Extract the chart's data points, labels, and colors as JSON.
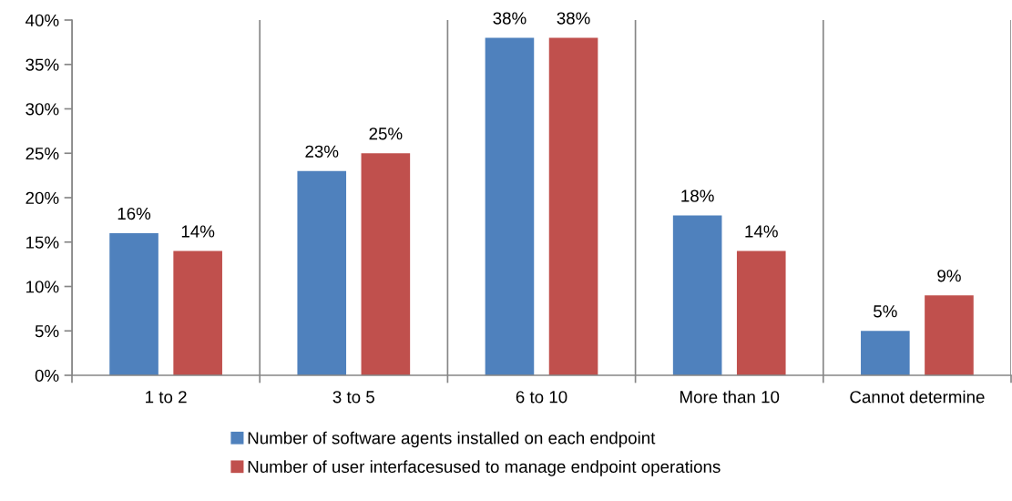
{
  "chart_data": {
    "type": "bar",
    "categories": [
      "1 to 2",
      "3 to 5",
      "6 to 10",
      "More than 10",
      "Cannot determine"
    ],
    "series": [
      {
        "name": "Number of software agents installed on each endpoint",
        "color": "#4f81bd",
        "values": [
          16,
          23,
          38,
          18,
          5
        ],
        "value_labels": [
          "16%",
          "23%",
          "38%",
          "18%",
          "5%"
        ]
      },
      {
        "name": "Number of user interfacesused to manage endpoint operations",
        "color": "#c0504d",
        "values": [
          14,
          25,
          38,
          14,
          9
        ],
        "value_labels": [
          "14%",
          "25%",
          "38%",
          "14%",
          "9%"
        ]
      }
    ],
    "ylim": [
      0,
      40
    ],
    "yticks": [
      {
        "value": 0,
        "label": "0%"
      },
      {
        "value": 5,
        "label": "5%"
      },
      {
        "value": 10,
        "label": "10%"
      },
      {
        "value": 15,
        "label": "15%"
      },
      {
        "value": 20,
        "label": "20%"
      },
      {
        "value": 25,
        "label": "25%"
      },
      {
        "value": 30,
        "label": "30%"
      },
      {
        "value": 35,
        "label": "35%"
      },
      {
        "value": 40,
        "label": "40%"
      }
    ],
    "grid": "x",
    "legend": "bottom"
  }
}
